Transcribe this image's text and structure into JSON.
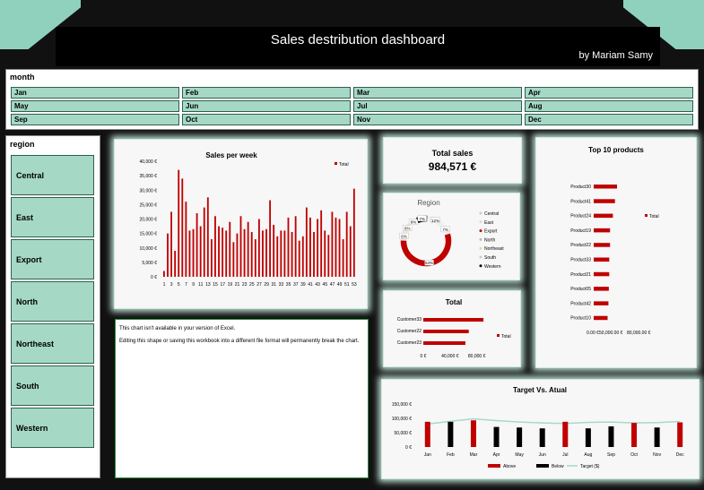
{
  "header": {
    "title": "Sales destribution dashboard",
    "author": "by Mariam Samy"
  },
  "month_slicer": {
    "label": "month",
    "items": [
      "Jan",
      "Feb",
      "Mar",
      "Apr",
      "May",
      "Jun",
      "Jul",
      "Aug",
      "Sep",
      "Oct",
      "Nov",
      "Dec"
    ]
  },
  "region_slicer": {
    "label": "region",
    "items": [
      "Central",
      "East",
      "Export",
      "North",
      "Northeast",
      "South",
      "Western"
    ]
  },
  "excel_message": {
    "line1": "This chart isn't available in your version of Excel.",
    "line2": "Editing this shape or saving this workbook into a different file format will permanently break the chart."
  },
  "total_sales": {
    "label": "Total sales",
    "value": "984,571 €"
  },
  "colors": {
    "accent": "#c00000",
    "slicer_fill": "#a5d9c6",
    "glow": "#bfe3d6",
    "target_line": "#a8d8c8"
  },
  "chart_data": [
    {
      "type": "bar",
      "title": "Sales per week",
      "legend": "Total",
      "ylim": [
        0,
        40000
      ],
      "yticks": [
        "0 €",
        "5,000 €",
        "10,000 €",
        "15,000 €",
        "20,000 €",
        "25,000 €",
        "30,000 €",
        "35,000 €",
        "40,000 €"
      ],
      "xticks": [
        "1",
        "3",
        "5",
        "7",
        "9",
        "11",
        "13",
        "15",
        "17",
        "19",
        "21",
        "23",
        "25",
        "27",
        "29",
        "31",
        "33",
        "35",
        "37",
        "39",
        "41",
        "43",
        "45",
        "47",
        "49",
        "51",
        "53"
      ],
      "categories": [
        1,
        2,
        3,
        4,
        5,
        6,
        7,
        8,
        9,
        10,
        11,
        12,
        13,
        14,
        15,
        16,
        17,
        18,
        19,
        20,
        21,
        22,
        23,
        24,
        25,
        26,
        27,
        28,
        29,
        30,
        31,
        32,
        33,
        34,
        35,
        36,
        37,
        38,
        39,
        40,
        41,
        42,
        43,
        44,
        45,
        46,
        47,
        48,
        49,
        50,
        51,
        52,
        53
      ],
      "values": [
        2000,
        15000,
        22500,
        9000,
        37000,
        34000,
        26000,
        16000,
        16500,
        22000,
        17500,
        24000,
        27500,
        13000,
        21000,
        17500,
        17000,
        16000,
        19000,
        12000,
        15000,
        21000,
        16500,
        19000,
        15500,
        13000,
        20000,
        16000,
        16500,
        26500,
        18000,
        14000,
        16000,
        16000,
        20500,
        15500,
        21000,
        12500,
        14000,
        24000,
        20500,
        15500,
        20000,
        23000,
        16000,
        14500,
        22500,
        20500,
        20000,
        13000,
        22500,
        17500,
        30500
      ]
    },
    {
      "type": "pie",
      "title": "Region",
      "labels": [
        "Central",
        "East",
        "Export",
        "North",
        "Northeast",
        "South",
        "Western"
      ],
      "values": [
        12,
        7,
        54,
        6,
        6,
        6,
        7
      ],
      "data_labels": [
        "12%",
        "7%",
        "54%",
        "6%",
        "6%",
        "6%",
        "7%"
      ]
    },
    {
      "type": "bar",
      "orientation": "horizontal",
      "title": "Top 10 products",
      "legend": "Total",
      "categories": [
        "Product30",
        "Product41",
        "Product24",
        "Product19",
        "Product22",
        "Product33",
        "Product21",
        "Product05",
        "Product42",
        "Product10"
      ],
      "values": [
        57000,
        52000,
        47000,
        40000,
        40000,
        38000,
        38000,
        37000,
        36000,
        34000
      ],
      "xticks": [
        "0.00 €",
        "50,000.00 €",
        "80,000.00 €"
      ]
    },
    {
      "type": "bar",
      "orientation": "horizontal",
      "title": "Total",
      "legend": "Total",
      "categories": [
        "Customer33",
        "Customer22",
        "Customer23"
      ],
      "values": [
        90000,
        68000,
        63000
      ],
      "xticks": [
        "0 €",
        "40,000 €",
        "80,000 €"
      ],
      "xlim": [
        0,
        110000
      ]
    },
    {
      "type": "bar",
      "title": "Target Vs. Atual",
      "categories": [
        "Jan",
        "Feb",
        "Mar",
        "Apr",
        "May",
        "Jun",
        "Jul",
        "Aug",
        "Sep",
        "Oct",
        "Nov",
        "Dec"
      ],
      "ylim": [
        0,
        150000
      ],
      "yticks": [
        "0 €",
        "50,000 €",
        "100,000 €",
        "150,000 €"
      ],
      "series": [
        {
          "name": "Above",
          "values": [
            88000,
            null,
            93000,
            null,
            null,
            null,
            88000,
            null,
            null,
            84000,
            null,
            86000
          ]
        },
        {
          "name": "Below",
          "values": [
            null,
            88000,
            null,
            70000,
            68000,
            65000,
            null,
            65000,
            72000,
            null,
            68000,
            null
          ]
        },
        {
          "name": "Target ($)",
          "values": [
            80000,
            90000,
            98000,
            92000,
            87000,
            84000,
            82000,
            86000,
            87000,
            84000,
            85000,
            89000
          ]
        }
      ]
    }
  ]
}
